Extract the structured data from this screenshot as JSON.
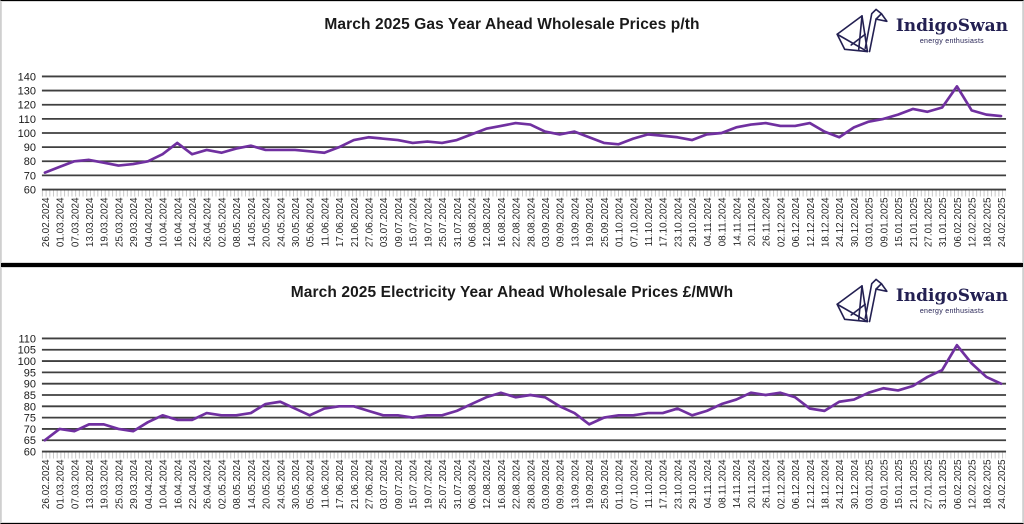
{
  "page": {
    "background": "#ffffff"
  },
  "logo": {
    "name": "IndigoSwan",
    "tagline": "energy enthusiasts",
    "color": "#232052",
    "icon": "origami-swan-icon"
  },
  "chart_data": [
    {
      "type": "line",
      "title": "March 2025 Gas Year Ahead Wholesale Prices p/th",
      "xlabel": "",
      "ylabel": "",
      "unit": "p/th",
      "ylim": [
        60,
        140
      ],
      "yticks": [
        140,
        130,
        120,
        110,
        100,
        90,
        80,
        70,
        60
      ],
      "grid": true,
      "legend": "none",
      "line_color": "#7030A0",
      "grid_color": "#3F3F3F",
      "categories": [
        "26.02.2024",
        "01.03.2024",
        "07.03.2024",
        "13.03.2024",
        "19.03.2024",
        "25.03.2024",
        "29.03.2024",
        "04.04.2024",
        "10.04.2024",
        "16.04.2024",
        "22.04.2024",
        "26.04.2024",
        "02.05.2024",
        "08.05.2024",
        "14.05.2024",
        "20.05.2024",
        "24.05.2024",
        "30.05.2024",
        "05.06.2024",
        "11.06.2024",
        "17.06.2024",
        "21.06.2024",
        "27.06.2024",
        "03.07.2024",
        "09.07.2024",
        "15.07.2024",
        "19.07.2024",
        "25.07.2024",
        "31.07.2024",
        "06.08.2024",
        "12.08.2024",
        "16.08.2024",
        "22.08.2024",
        "28.08.2024",
        "03.09.2024",
        "09.09.2024",
        "13.09.2024",
        "19.09.2024",
        "25.09.2024",
        "01.10.2024",
        "07.10.2024",
        "11.10.2024",
        "17.10.2024",
        "23.10.2024",
        "29.10.2024",
        "04.11.2024",
        "08.11.2024",
        "14.11.2024",
        "20.11.2024",
        "26.11.2024",
        "02.12.2024",
        "06.12.2024",
        "12.12.2024",
        "18.12.2024",
        "24.12.2024",
        "30.12.2024",
        "03.01.2025",
        "09.01.2025",
        "15.01.2025",
        "21.01.2025",
        "27.01.2025",
        "31.01.2025",
        "06.02.2025",
        "12.02.2025",
        "18.02.2025",
        "24.02.2025"
      ],
      "values": [
        72,
        76,
        80,
        81,
        79,
        77,
        78,
        80,
        85,
        93,
        85,
        88,
        86,
        89,
        91,
        88,
        88,
        88,
        87,
        86,
        90,
        95,
        97,
        96,
        95,
        93,
        94,
        93,
        95,
        99,
        103,
        105,
        107,
        106,
        101,
        99,
        101,
        97,
        93,
        92,
        96,
        99,
        98,
        97,
        95,
        99,
        100,
        104,
        106,
        107,
        105,
        105,
        107,
        101,
        97,
        104,
        108,
        110,
        113,
        117,
        115,
        118,
        133,
        116,
        113,
        112
      ]
    },
    {
      "type": "line",
      "title": "March 2025 Electricity Year Ahead Wholesale Prices £/MWh",
      "xlabel": "",
      "ylabel": "",
      "unit": "£/MWh",
      "ylim": [
        60,
        110
      ],
      "yticks": [
        110,
        105,
        100,
        95,
        90,
        85,
        80,
        75,
        70,
        65,
        60
      ],
      "grid": true,
      "legend": "none",
      "line_color": "#7030A0",
      "grid_color": "#3F3F3F",
      "categories": [
        "26.02.2024",
        "01.03.2024",
        "07.03.2024",
        "13.03.2024",
        "19.03.2024",
        "25.03.2024",
        "29.03.2024",
        "04.04.2024",
        "10.04.2024",
        "16.04.2024",
        "22.04.2024",
        "26.04.2024",
        "02.05.2024",
        "08.05.2024",
        "14.05.2024",
        "20.05.2024",
        "24.05.2024",
        "30.05.2024",
        "05.06.2024",
        "11.06.2024",
        "17.06.2024",
        "21.06.2024",
        "27.06.2024",
        "03.07.2024",
        "09.07.2024",
        "15.07.2024",
        "19.07.2024",
        "25.07.2024",
        "31.07.2024",
        "06.08.2024",
        "12.08.2024",
        "16.08.2024",
        "22.08.2024",
        "28.08.2024",
        "03.09.2024",
        "09.09.2024",
        "13.09.2024",
        "19.09.2024",
        "25.09.2024",
        "01.10.2024",
        "07.10.2024",
        "11.10.2024",
        "17.10.2024",
        "23.10.2024",
        "29.10.2024",
        "04.11.2024",
        "08.11.2024",
        "14.11.2024",
        "20.11.2024",
        "26.11.2024",
        "02.12.2024",
        "06.12.2024",
        "12.12.2024",
        "18.12.2024",
        "24.12.2024",
        "30.12.2024",
        "03.01.2025",
        "09.01.2025",
        "15.01.2025",
        "21.01.2025",
        "27.01.2025",
        "31.01.2025",
        "06.02.2025",
        "12.02.2025",
        "18.02.2025",
        "24.02.2025"
      ],
      "values": [
        65,
        70,
        69,
        72,
        72,
        70,
        69,
        73,
        76,
        74,
        74,
        77,
        76,
        76,
        77,
        81,
        82,
        79,
        76,
        79,
        80,
        80,
        78,
        76,
        76,
        75,
        76,
        76,
        78,
        81,
        84,
        86,
        84,
        85,
        84,
        80,
        77,
        72,
        75,
        76,
        76,
        77,
        77,
        79,
        76,
        78,
        81,
        83,
        86,
        85,
        86,
        84,
        79,
        78,
        82,
        83,
        86,
        88,
        87,
        89,
        93,
        96,
        107,
        99,
        93,
        90
      ]
    }
  ]
}
